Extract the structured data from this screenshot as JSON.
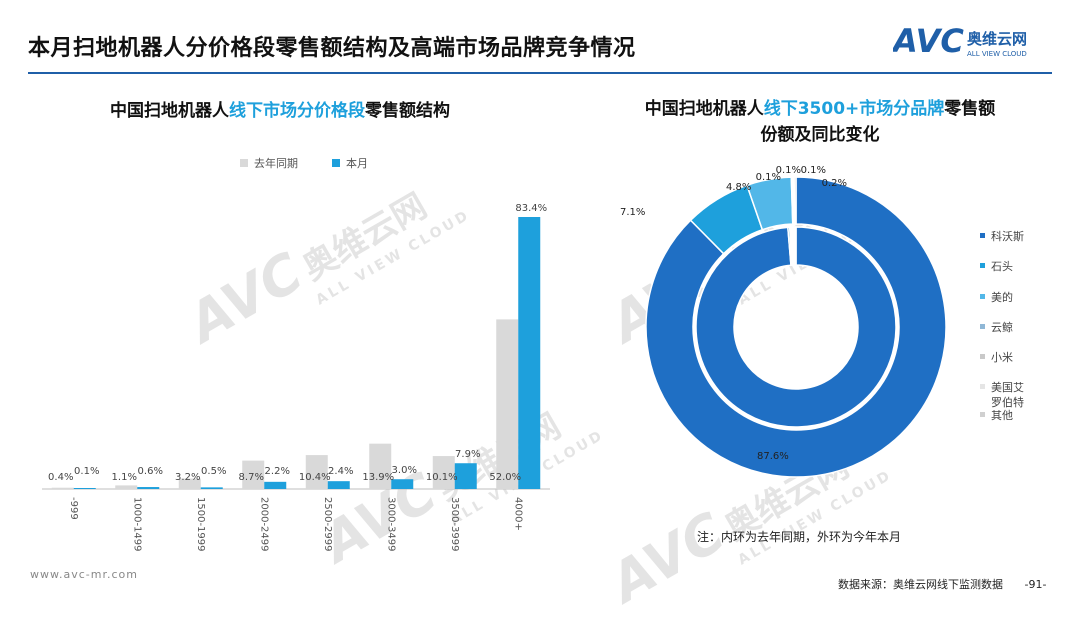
{
  "page": {
    "title": "本月扫地机器人分价格段零售额结构及高端市场品牌竞争情况",
    "footer_left": "www.avc-mr.com",
    "footer_source": "数据来源：奥维云网线下监测数据",
    "page_number": "-91-",
    "note": "注：内环为去年同期，外环为今年本月"
  },
  "logo": {
    "mark": "AVC",
    "cn": "奥维云网",
    "en": "ALL VIEW CLOUD",
    "color": "#1f5fa8"
  },
  "watermark": {
    "mark": "AVC",
    "cn": "奥维云网",
    "en": "ALL VIEW CLOUD"
  },
  "chart_data": [
    {
      "type": "bar",
      "title_parts": [
        "中国扫地机器人",
        "线下市场分价格段",
        "零售额结构"
      ],
      "categories": [
        "-999",
        "1000-1499",
        "1500-1999",
        "2000-2499",
        "2500-2999",
        "3000-3499",
        "3500-3999",
        "4000+"
      ],
      "series": [
        {
          "name": "去年同期",
          "color": "#d9d9d9",
          "values": [
            0.4,
            1.1,
            3.2,
            8.7,
            10.4,
            13.9,
            10.1,
            52.0
          ],
          "labels": [
            "0.4%",
            "1.1%",
            "3.2%",
            "8.7%",
            "10.4%",
            "13.9%",
            "10.1%",
            "52.0%"
          ]
        },
        {
          "name": "本月",
          "color": "#1ea0dc",
          "values": [
            0.1,
            0.6,
            0.5,
            2.2,
            2.4,
            3.0,
            7.9,
            83.4
          ],
          "labels": [
            "0.1%",
            "0.6%",
            "0.5%",
            "2.2%",
            "2.4%",
            "3.0%",
            "7.9%",
            "83.4%"
          ]
        }
      ],
      "ylim": [
        0,
        83.4
      ],
      "legend": "top"
    },
    {
      "type": "pie",
      "title_line1_parts": [
        "中国扫地机器人",
        "线下3500+市场分品牌",
        "零售额"
      ],
      "title_line2": "份额及同比变化",
      "legend": "right",
      "categories": [
        "科沃斯",
        "石头",
        "美的",
        "云鲸",
        "小米",
        "美国艾罗伯特",
        "其他"
      ],
      "legend_labels": [
        "科沃斯",
        "石头",
        "美的",
        "云鲸",
        "小米",
        "美国艾\n罗伯特",
        "其他"
      ],
      "colors": [
        "#1f6fc4",
        "#1ea0dc",
        "#52b7e8",
        "#8fb7d6",
        "#c9c9c9",
        "#e5e5e5",
        "#d0d0d0"
      ],
      "series": [
        {
          "name": "外环",
          "values": [
            87.6,
            7.1,
            4.8,
            0.1,
            0.1,
            0.1,
            0.2
          ],
          "labels": [
            "87.6%",
            "7.1%",
            "4.8%",
            "0.1%",
            "0.1%",
            "0.1%",
            "0.2%"
          ]
        },
        {
          "name": "内环",
          "values": [
            98.7,
            0.3,
            0.2,
            0.2,
            0.2,
            0.2,
            0.2
          ],
          "labels": []
        }
      ]
    }
  ]
}
